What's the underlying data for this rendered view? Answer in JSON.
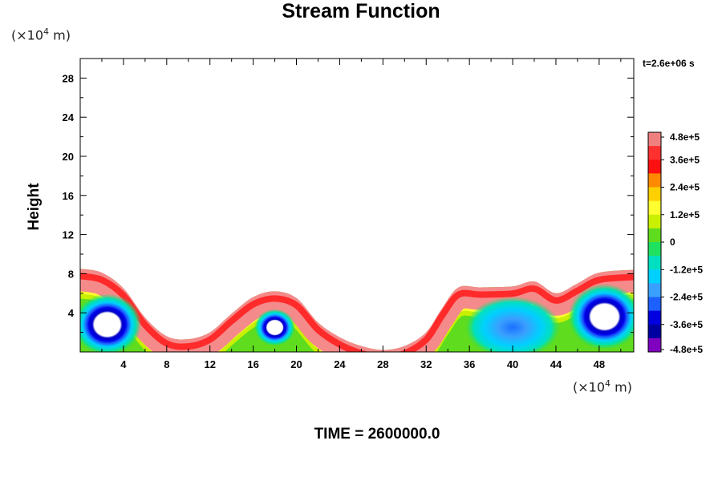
{
  "title": "Stream Function",
  "y_scale_note": {
    "prefix": "(×10",
    "exp": "4",
    "suffix": " m)"
  },
  "x_scale_note": {
    "prefix": "(×10",
    "exp": "4",
    "suffix": " m)"
  },
  "time_label": "t=2.6e+06 s",
  "footer": "TIME = 2600000.0",
  "chart_data": {
    "type": "heatmap",
    "title": "Stream Function",
    "xlabel": "",
    "ylabel": "Height",
    "x_unit": "×10^4 m",
    "y_unit": "×10^4 m",
    "xlim": [
      0,
      51.2
    ],
    "ylim": [
      0,
      30
    ],
    "x_ticks": [
      4,
      8,
      12,
      16,
      20,
      24,
      28,
      32,
      36,
      40,
      44,
      48
    ],
    "x_tick_labels": [
      "4",
      "8",
      "12",
      "16",
      "20",
      "24",
      "28",
      "32",
      "36",
      "40",
      "44",
      "48"
    ],
    "y_ticks": [
      4,
      8,
      12,
      16,
      20,
      24,
      28
    ],
    "y_tick_labels": [
      "4",
      "8",
      "12",
      "16",
      "20",
      "24",
      "28"
    ],
    "grid": false,
    "colorbar": {
      "min": -480000,
      "max": 480000,
      "ticks": [
        480000,
        360000,
        240000,
        120000,
        0,
        -120000,
        -240000,
        -360000,
        -480000
      ],
      "tick_labels": [
        "4.8e+5",
        "3.6e+5",
        "2.4e+5",
        "1.2e+5",
        "0",
        "-1.2e+5",
        "-2.4e+5",
        "-3.6e+5",
        "-4.8e+5"
      ],
      "colors_top_to_bottom": [
        "#f08080",
        "#ff3030",
        "#ff1010",
        "#ff8a00",
        "#ffd000",
        "#ffff30",
        "#c8f000",
        "#60dc1e",
        "#20e060",
        "#00e0c0",
        "#00d0ff",
        "#3aa0ff",
        "#1c60ff",
        "#0000e0",
        "#0000a0",
        "#8000c0"
      ]
    },
    "surface_top_y": [
      [
        0,
        8.5
      ],
      [
        2,
        8.1
      ],
      [
        4,
        6.5
      ],
      [
        6,
        3.5
      ],
      [
        8,
        1.6
      ],
      [
        10,
        1.3
      ],
      [
        12,
        2.0
      ],
      [
        14,
        3.9
      ],
      [
        16,
        5.6
      ],
      [
        18,
        6.2
      ],
      [
        20,
        5.5
      ],
      [
        22,
        3.0
      ],
      [
        24,
        1.5
      ],
      [
        26,
        0.6
      ],
      [
        28,
        0.2
      ],
      [
        30,
        0.6
      ],
      [
        32,
        2.0
      ],
      [
        33.5,
        4.5
      ],
      [
        35,
        6.6
      ],
      [
        37,
        6.6
      ],
      [
        40,
        6.7
      ],
      [
        42,
        7.2
      ],
      [
        44,
        6.0
      ],
      [
        46,
        7.0
      ],
      [
        48,
        8.1
      ],
      [
        51.2,
        8.4
      ]
    ],
    "features": [
      {
        "kind": "vortex",
        "sign": "negative",
        "center": [
          2.5,
          2.8
        ],
        "radius": 3.0,
        "peak": -480000
      },
      {
        "kind": "vortex",
        "sign": "negative",
        "center": [
          18,
          2.5
        ],
        "radius": 1.8,
        "peak": -480000
      },
      {
        "kind": "vortex",
        "sign": "negative",
        "center": [
          48.5,
          3.6
        ],
        "radius": 3.2,
        "peak": -480000
      },
      {
        "kind": "region",
        "sign": "negative",
        "center": [
          40,
          2.5
        ],
        "radius": 3.5,
        "peak": -300000
      }
    ]
  }
}
